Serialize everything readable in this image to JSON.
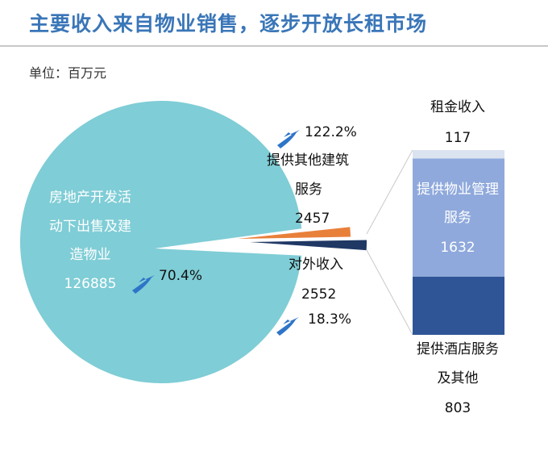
{
  "title": "主要收入来自物业销售，逐步开放长租市场",
  "unit_label": "单位：百万元",
  "colors": {
    "title": "#3a76b8",
    "pie_main": "#7fcdd6",
    "pie_orange": "#e8803a",
    "pie_navy": "#1f3864",
    "bar_top": "#dbe3f1",
    "bar_mid": "#8fa9dc",
    "bar_bottom": "#2f5597",
    "arrow": "#2e75c8"
  },
  "chart_data": [
    {
      "type": "pie",
      "slices": [
        {
          "label_lines": [
            "房地产开发活",
            "动下出售及建",
            "造物业"
          ],
          "value": 126885,
          "value_text": "126885",
          "growth": "70.4%",
          "color": "#7fcdd6"
        },
        {
          "label_lines": [
            "提供其他建筑",
            "服务"
          ],
          "value": 2457,
          "value_text": "2457",
          "growth": "122.2%",
          "color": "#e8803a"
        },
        {
          "label_lines": [
            "对外收入"
          ],
          "value": 2552,
          "value_text": "2552",
          "growth": "18.3%",
          "color": "#1f3864"
        }
      ]
    },
    {
      "type": "bar",
      "stacked": true,
      "segments": [
        {
          "label_lines": [
            "租金收入"
          ],
          "value": 117,
          "value_text": "117",
          "color": "#dbe3f1"
        },
        {
          "label_lines": [
            "提供物业管理",
            "服务"
          ],
          "value": 1632,
          "value_text": "1632",
          "color": "#8fa9dc"
        },
        {
          "label_lines": [
            "提供酒店服务",
            "及其他"
          ],
          "value": 803,
          "value_text": "803",
          "color": "#2f5597"
        }
      ]
    }
  ]
}
